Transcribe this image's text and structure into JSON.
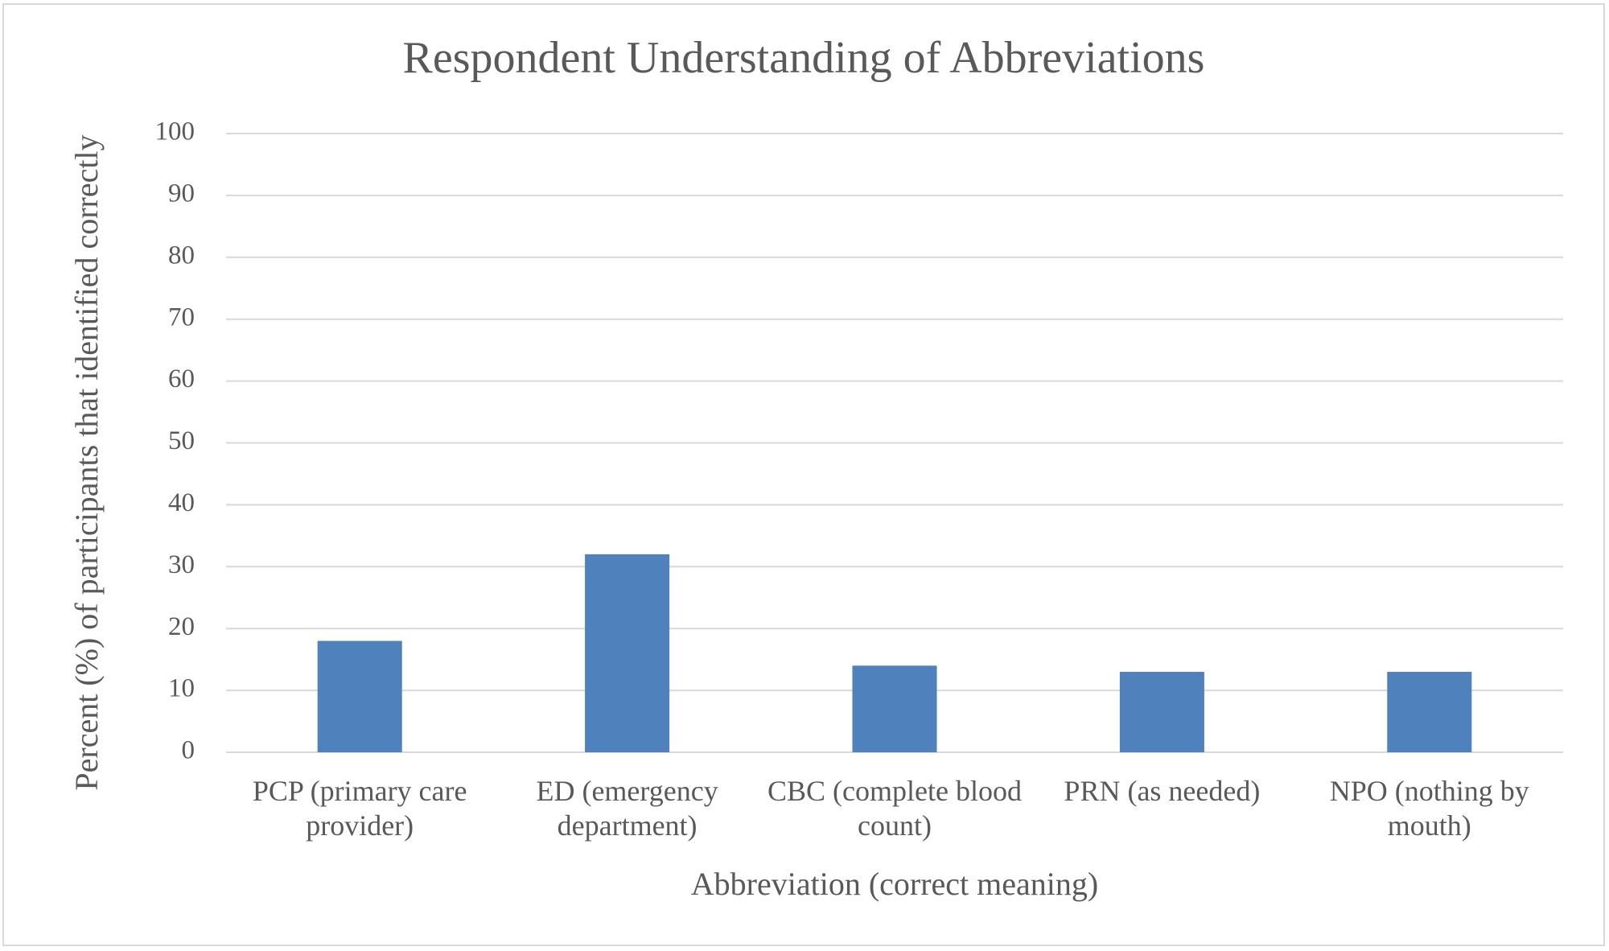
{
  "chart_data": {
    "type": "bar",
    "title": "Respondent Understanding of Abbreviations",
    "x_label": "Abbreviation (correct meaning)",
    "y_label": "Percent (%) of participants that identified correctly",
    "categories": [
      "PCP (primary care provider)",
      "ED (emergency department)",
      "CBC (complete blood count)",
      "PRN (as needed)",
      "NPO (nothing by mouth)"
    ],
    "values": [
      18,
      32,
      14,
      13,
      13
    ],
    "color": "#4f81bd",
    "ylim": [
      0,
      100
    ],
    "yticks": [
      0,
      10,
      20,
      30,
      40,
      50,
      60,
      70,
      80,
      90,
      100
    ],
    "grid": true
  }
}
